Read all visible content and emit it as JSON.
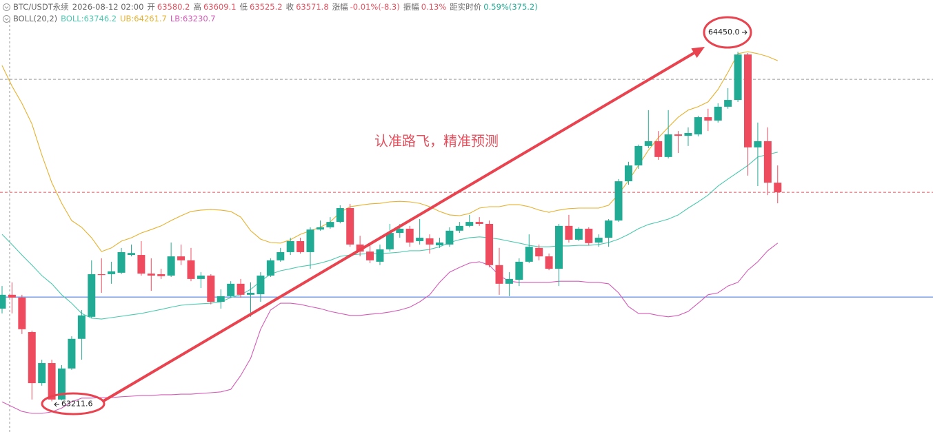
{
  "header": {
    "symbol": "BTC/USDT永续",
    "time": "2026-08-12 02:00",
    "fields": [
      {
        "label": "开",
        "value": "63580.2",
        "color": "#e5505e"
      },
      {
        "label": "高",
        "value": "63609.1",
        "color": "#e5505e"
      },
      {
        "label": "低",
        "value": "63525.2",
        "color": "#e5505e"
      },
      {
        "label": "收",
        "value": "63571.8",
        "color": "#e5505e"
      },
      {
        "label": "涨幅",
        "value": "-0.01%(-8.3)",
        "color": "#e5505e"
      },
      {
        "label": "振幅",
        "value": "0.13%",
        "color": "#e5505e"
      },
      {
        "label": "距实时价",
        "value": "0.59%(375.2)",
        "color": "#22ab94"
      }
    ]
  },
  "chart_data": {
    "type": "candlestick",
    "indicator": "BOLL(20,2)",
    "ylim": [
      63103,
      64633
    ],
    "up_color": "#22ab94",
    "down_color": "#ef4b5e",
    "open": [
      63540,
      63589,
      63579,
      63457,
      63276,
      63347,
      63218,
      63328,
      63433,
      63511,
      63662,
      63662,
      63667,
      63730,
      63730,
      63664,
      63662,
      63657,
      63725,
      63711,
      63645,
      63657,
      63564,
      63584,
      63628,
      63589,
      63591,
      63657,
      63711,
      63740,
      63779,
      63740,
      63820,
      63828,
      63847,
      63896,
      63767,
      63742,
      63706,
      63750,
      63808,
      63823,
      63779,
      63789,
      63764,
      63767,
      63816,
      63833,
      63847,
      63840,
      63694,
      63628,
      63642,
      63706,
      63755,
      63725,
      63681,
      63833,
      63784,
      63823,
      63774,
      63791,
      63852,
      63991,
      64047,
      64116,
      64133,
      64077,
      64157,
      64152,
      64157,
      64218,
      64206,
      64255,
      64279,
      64440,
      64111,
      64133,
      63986
    ],
    "high": [
      63620,
      63633,
      63589,
      63462,
      63359,
      63359,
      63340,
      63442,
      63535,
      63711,
      63718,
      63706,
      63755,
      63767,
      63779,
      63718,
      63681,
      63774,
      63767,
      63755,
      63669,
      63662,
      63608,
      63637,
      63645,
      63633,
      63669,
      63718,
      63755,
      63791,
      63791,
      63828,
      63852,
      63864,
      63906,
      63911,
      63798,
      63767,
      63767,
      63840,
      63840,
      63833,
      63857,
      63803,
      63791,
      63828,
      63847,
      63872,
      63864,
      63852,
      63755,
      63669,
      63718,
      63803,
      63767,
      63735,
      63840,
      63872,
      63828,
      63828,
      63803,
      63857,
      63999,
      64060,
      64121,
      64243,
      64169,
      64243,
      64169,
      64182,
      64223,
      64248,
      64267,
      64321,
      64450,
      64445,
      64199,
      64182,
      64047
    ],
    "low": [
      63523,
      63523,
      63450,
      63218,
      63267,
      63211.6,
      63215,
      63323,
      63359,
      63506,
      63596,
      63628,
      63662,
      63725,
      63657,
      63603,
      63645,
      63652,
      63694,
      63637,
      63613,
      63555,
      63540,
      63579,
      63579,
      63511,
      63564,
      63652,
      63706,
      63730,
      63735,
      63681,
      63816,
      63823,
      63842,
      63759,
      63725,
      63701,
      63694,
      63742,
      63791,
      63759,
      63767,
      63735,
      63755,
      63759,
      63808,
      63828,
      63833,
      63686,
      63589,
      63584,
      63620,
      63701,
      63711,
      63676,
      63620,
      63774,
      63779,
      63764,
      63759,
      63759,
      63847,
      63979,
      64035,
      64108,
      64067,
      64072,
      64091,
      64116,
      64150,
      64169,
      64199,
      64248,
      64272,
      64011,
      63974,
      63942,
      63913
    ],
    "close": [
      63589,
      63579,
      63467,
      63276,
      63347,
      63218,
      63328,
      63433,
      63516,
      63662,
      63659,
      63672,
      63740,
      63737,
      63664,
      63657,
      63655,
      63725,
      63711,
      63645,
      63657,
      63564,
      63584,
      63628,
      63589,
      63596,
      63657,
      63711,
      63740,
      63779,
      63740,
      63820,
      63828,
      63847,
      63896,
      63767,
      63742,
      63711,
      63750,
      63808,
      63823,
      63774,
      63791,
      63767,
      63774,
      63816,
      63833,
      63847,
      63840,
      63694,
      63628,
      63645,
      63706,
      63759,
      63725,
      63681,
      63833,
      63784,
      63823,
      63772,
      63791,
      63852,
      63991,
      64047,
      64116,
      64133,
      64077,
      64157,
      64152,
      64162,
      64218,
      64206,
      64255,
      64279,
      64440,
      64111,
      64133,
      63986,
      63952
    ],
    "series": [
      {
        "name": "BOLL:63746.2",
        "color": "#4cc9b0",
        "values": [
          63803,
          63767,
          63730,
          63694,
          63657,
          63628,
          63589,
          63559,
          63523,
          63506,
          63503,
          63508,
          63513,
          63518,
          63523,
          63530,
          63537,
          63545,
          63552,
          63555,
          63557,
          63559,
          63564,
          63579,
          63589,
          63608,
          63637,
          63662,
          63674,
          63681,
          63689,
          63694,
          63701,
          63711,
          63725,
          63730,
          63733,
          63735,
          63735,
          63737,
          63740,
          63745,
          63745,
          63750,
          63759,
          63774,
          63784,
          63791,
          63794,
          63791,
          63786,
          63779,
          63772,
          63764,
          63759,
          63759,
          63762,
          63762,
          63764,
          63764,
          63767,
          63774,
          63786,
          63803,
          63823,
          63838,
          63847,
          63857,
          63872,
          63896,
          63918,
          63942,
          63974,
          63999,
          64023,
          64047,
          64077,
          64086,
          64094
        ]
      },
      {
        "name": "UB:64261.7",
        "color": "#e6b12e",
        "values": [
          64401,
          64328,
          64267,
          64194,
          64084,
          63986,
          63913,
          63852,
          63828,
          63791,
          63742,
          63755,
          63779,
          63791,
          63808,
          63820,
          63833,
          63852,
          63869,
          63884,
          63889,
          63891,
          63889,
          63884,
          63864,
          63816,
          63786,
          63774,
          63772,
          63784,
          63803,
          63816,
          63828,
          63847,
          63881,
          63901,
          63906,
          63911,
          63913,
          63918,
          63920,
          63918,
          63913,
          63901,
          63884,
          63872,
          63869,
          63877,
          63896,
          63901,
          63901,
          63908,
          63908,
          63901,
          63889,
          63881,
          63889,
          63894,
          63896,
          63896,
          63896,
          63906,
          63945,
          63994,
          64047,
          64101,
          64145,
          64182,
          64218,
          64243,
          64255,
          64272,
          64316,
          64377,
          64443,
          64450,
          64443,
          64433,
          64418
        ]
      },
      {
        "name": "LB:63230.7",
        "color": "#d45bb8",
        "values": [
          63210,
          63193,
          63176,
          63169,
          63169,
          63174,
          63188,
          63210,
          63223,
          63223,
          63225,
          63225,
          63228,
          63230,
          63232,
          63232,
          63235,
          63235,
          63237,
          63237,
          63240,
          63242,
          63245,
          63254,
          63303,
          63364,
          63467,
          63535,
          63559,
          63559,
          63555,
          63547,
          63540,
          63530,
          63523,
          63516,
          63516,
          63520,
          63523,
          63528,
          63535,
          63545,
          63564,
          63589,
          63633,
          63669,
          63686,
          63701,
          63706,
          63694,
          63657,
          63637,
          63633,
          63633,
          63633,
          63633,
          63637,
          63637,
          63637,
          63633,
          63633,
          63628,
          63596,
          63547,
          63523,
          63523,
          63516,
          63511,
          63516,
          63530,
          63559,
          63589,
          63596,
          63620,
          63633,
          63676,
          63706,
          63745,
          63772
        ]
      }
    ],
    "price_lines": [
      {
        "value": 63581,
        "color": "#3d6fd6",
        "style": "solid"
      },
      {
        "value": 63952,
        "color": "#e5505e",
        "style": "dashed"
      },
      {
        "value": 64352,
        "color": "#9a9a9a",
        "style": "dashed"
      }
    ],
    "max_marker": {
      "value": 64450.0,
      "label": "64450.0"
    },
    "min_marker": {
      "value": 63211.6,
      "label": "63211.6"
    },
    "annotation": "认准路飞，精准预测"
  }
}
